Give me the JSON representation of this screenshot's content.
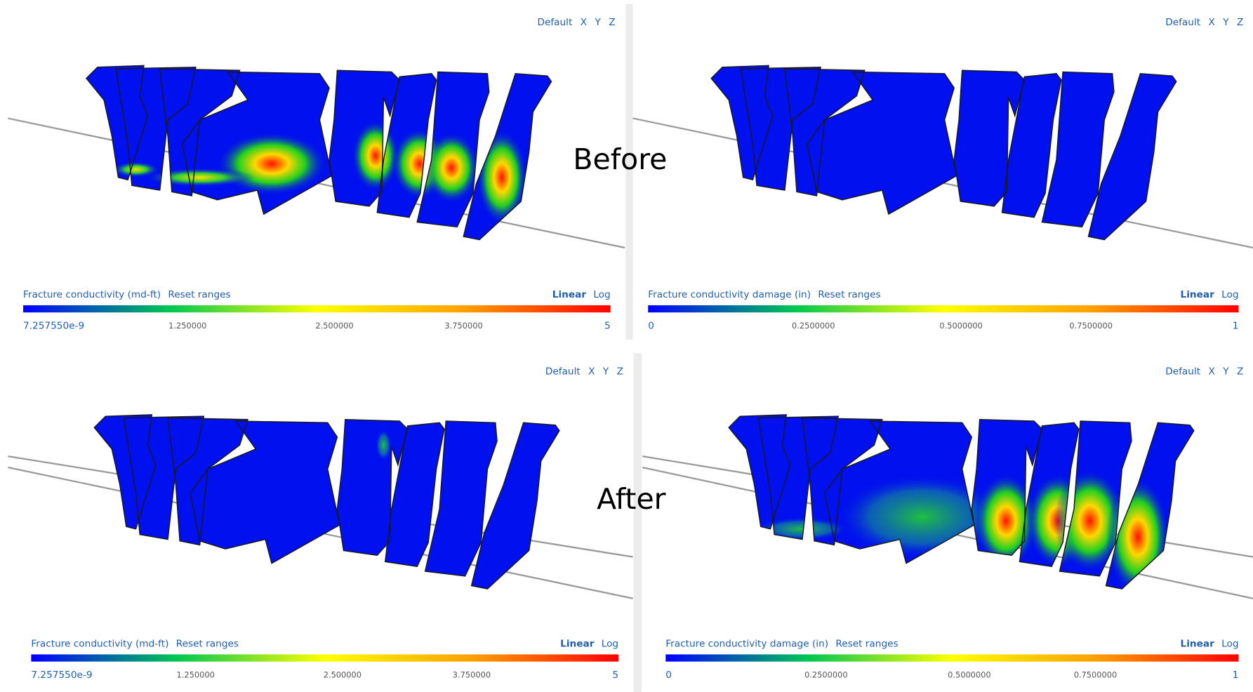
{
  "labels": {
    "before": "Before",
    "after": "After"
  },
  "panels": [
    {
      "view_buttons": [
        "Default",
        "X",
        "Y",
        "Z"
      ],
      "legend": {
        "title": "Fracture conductivity (md-ft)",
        "reset": "Reset ranges",
        "scales": [
          "Linear",
          "Log"
        ],
        "ticks": [
          "7.257550e-9",
          "1.250000",
          "2.500000",
          "3.750000",
          "5"
        ]
      }
    },
    {
      "view_buttons": [
        "Default",
        "X",
        "Y",
        "Z"
      ],
      "legend": {
        "title": "Fracture conductivity damage (in)",
        "reset": "Reset ranges",
        "scales": [
          "Linear",
          "Log"
        ],
        "ticks": [
          "0",
          "0.2500000",
          "0.5000000",
          "0.7500000",
          "1"
        ]
      }
    },
    {
      "view_buttons": [
        "Default",
        "X",
        "Y",
        "Z"
      ],
      "legend": {
        "title": "Fracture conductivity (md-ft)",
        "reset": "Reset ranges",
        "scales": [
          "Linear",
          "Log"
        ],
        "ticks": [
          "7.257550e-9",
          "1.250000",
          "2.500000",
          "3.750000",
          "5"
        ]
      }
    },
    {
      "view_buttons": [
        "Default",
        "X",
        "Y",
        "Z"
      ],
      "legend": {
        "title": "Fracture conductivity damage (in)",
        "reset": "Reset ranges",
        "scales": [
          "Linear",
          "Log"
        ],
        "ticks": [
          "0",
          "0.2500000",
          "0.5000000",
          "0.7500000",
          "1"
        ]
      }
    }
  ]
}
